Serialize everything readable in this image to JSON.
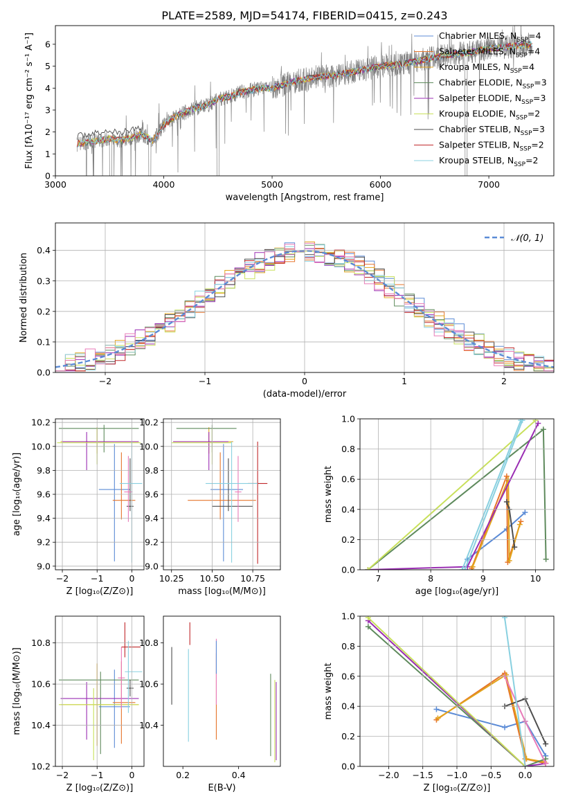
{
  "figure_title": "PLATE=2589, MJD=54174, FIBERID=0415, z=0.243",
  "colors": {
    "chabrier_miles": "#5b8bd6",
    "salpeter_miles": "#e6742a",
    "kroupa_miles": "#e2a41c",
    "chabrier_elodie": "#5e8a5c",
    "salpeter_elodie": "#9a2db3",
    "kroupa_elodie": "#c8e05a",
    "chabrier_stelib": "#4d4d4d",
    "salpeter_stelib": "#c0282a",
    "kroupa_stelib": "#88d0e0",
    "normal": "#5b8bd6",
    "pink": "#e87ab8",
    "observed": "#808080"
  },
  "chart_data": [
    {
      "id": "spectrum",
      "type": "line",
      "xlabel": "wavelength [Angstrom, rest frame]",
      "ylabel": "Flux [fλ10⁻¹⁷ erg cm⁻² s⁻¹ A⁻¹]",
      "xlim": [
        3000,
        7600
      ],
      "ylim": [
        0,
        6.85
      ],
      "xticks": [
        3000,
        4000,
        5000,
        6000,
        7000
      ],
      "yticks": [
        0,
        1,
        2,
        3,
        4,
        5,
        6
      ],
      "legend_position": "top-right",
      "legend": [
        {
          "label": "Chabrier MILES, N",
          "sub": "SSP",
          "suffix": "=4",
          "color": "chabrier_miles"
        },
        {
          "label": "Salpeter MILES, N",
          "sub": "SSP",
          "suffix": "=4",
          "color": "salpeter_miles"
        },
        {
          "label": "Kroupa MILES, N",
          "sub": "SSP",
          "suffix": "=4",
          "color": "kroupa_miles"
        },
        {
          "label": "Chabrier ELODIE, N",
          "sub": "SSP",
          "suffix": "=3",
          "color": "chabrier_elodie"
        },
        {
          "label": "Salpeter ELODIE, N",
          "sub": "SSP",
          "suffix": "=3",
          "color": "salpeter_elodie"
        },
        {
          "label": "Kroupa ELODIE, N",
          "sub": "SSP",
          "suffix": "=2",
          "color": "kroupa_elodie"
        },
        {
          "label": "Chabrier STELIB, N",
          "sub": "SSP",
          "suffix": "=3",
          "color": "chabrier_stelib"
        },
        {
          "label": "Salpeter STELIB, N",
          "sub": "SSP",
          "suffix": "=2",
          "color": "salpeter_stelib"
        },
        {
          "label": "Kroupa STELIB, N",
          "sub": "SSP",
          "suffix": "=2",
          "color": "kroupa_stelib"
        }
      ],
      "continuum": {
        "x": [
          3200,
          3300,
          3400,
          3500,
          3600,
          3700,
          3800,
          3900,
          4000,
          4100,
          4200,
          4300,
          4400,
          4500,
          4600,
          4700,
          4800,
          4900,
          5000,
          5200,
          5400,
          5600,
          5800,
          6000,
          6200,
          6400,
          6600,
          6800,
          7000,
          7200,
          7400
        ],
        "y": [
          1.45,
          1.55,
          1.6,
          1.7,
          1.6,
          1.75,
          1.9,
          1.6,
          2.3,
          2.7,
          2.9,
          3.1,
          3.2,
          3.5,
          3.6,
          3.8,
          3.9,
          4.0,
          4.0,
          4.3,
          4.5,
          4.6,
          4.8,
          5.0,
          5.1,
          5.3,
          5.5,
          5.6,
          5.8,
          5.9,
          6.0
        ]
      }
    },
    {
      "id": "residual-histogram",
      "type": "histogram",
      "xlabel": "(data-model)/error",
      "ylabel": "Normed distribution",
      "xlim": [
        -2.5,
        2.5
      ],
      "ylim": [
        0,
        0.49
      ],
      "xticks": [
        -2,
        -1,
        0,
        1,
        2
      ],
      "yticks": [
        0.0,
        0.1,
        0.2,
        0.3,
        0.4
      ],
      "grid": true,
      "legend_position": "top-right",
      "legend_label": "𝒩(0, 1)",
      "normal_curve": {
        "mean": 0,
        "sigma": 1
      },
      "bin_width": 0.1
    },
    {
      "id": "age-vs-Z",
      "type": "errorbar",
      "xlabel": "Z [log₁₀(Z/Z⊙)]",
      "ylabel": "age  [log₁₀(age/yr)]",
      "xlim": [
        -2.2,
        0.35
      ],
      "ylim": [
        8.97,
        10.23
      ],
      "xticks": [
        -2,
        -1,
        0
      ],
      "yticks": [
        9.0,
        9.2,
        9.4,
        9.6,
        9.8,
        10.0,
        10.2
      ],
      "grid": true,
      "points": [
        {
          "color": "chabrier_miles",
          "x": -0.5,
          "xerr": [
            0.45,
            0.45
          ],
          "y": 9.64,
          "yerr": [
            0.6,
            0.38
          ]
        },
        {
          "color": "salpeter_miles",
          "x": -0.3,
          "xerr": [
            0.25,
            0.4
          ],
          "y": 9.55,
          "yerr": [
            0.16,
            0.4
          ]
        },
        {
          "color": "kroupa_miles",
          "x": -1.0,
          "xerr": [
            1.05,
            1.2
          ],
          "y": 10.04,
          "yerr": [
            0.1,
            0.12
          ]
        },
        {
          "color": "chabrier_elodie",
          "x": -0.8,
          "xerr": [
            1.3,
            1.0
          ],
          "y": 10.15,
          "yerr": [
            0.2,
            0.03
          ]
        },
        {
          "color": "salpeter_elodie",
          "x": -1.3,
          "xerr": [
            0.7,
            1.5
          ],
          "y": 10.04,
          "yerr": [
            0.24,
            0.08
          ]
        },
        {
          "color": "kroupa_elodie",
          "x": -1.0,
          "xerr": [
            1.15,
            1.25
          ],
          "y": 10.03,
          "yerr": [
            0.18,
            0.12
          ]
        },
        {
          "color": "chabrier_stelib",
          "x": -0.05,
          "xerr": [
            0.1,
            0.1
          ],
          "y": 9.5,
          "yerr": [
            0.04,
            0.4
          ]
        },
        {
          "color": "pink",
          "x": -0.1,
          "xerr": [
            0.12,
            0.12
          ],
          "y": 9.62,
          "yerr": [
            0.25,
            0.3
          ]
        },
        {
          "color": "kroupa_stelib",
          "x": 0.0,
          "xerr": [
            0.35,
            0.3
          ],
          "y": 9.69,
          "yerr": [
            0.66,
            0.35
          ]
        }
      ]
    },
    {
      "id": "age-vs-mass",
      "type": "errorbar",
      "xlabel": "mass [log₁₀(M/M⊙)]",
      "ylabel": "",
      "xlim": [
        10.2,
        10.92
      ],
      "ylim": [
        8.97,
        10.23
      ],
      "xticks": [
        10.25,
        10.5,
        10.75
      ],
      "tick_labels": [
        "10.25",
        "10.50",
        "10.75"
      ],
      "yticks": [
        9.0,
        9.2,
        9.4,
        9.6,
        9.8,
        10.0,
        10.2
      ],
      "grid": true,
      "points": [
        {
          "color": "chabrier_miles",
          "x": 10.57,
          "xerr": [
            0.08,
            0.12
          ],
          "y": 9.64,
          "yerr": [
            0.6,
            0.38
          ]
        },
        {
          "color": "salpeter_miles",
          "x": 10.55,
          "xerr": [
            0.2,
            0.22
          ],
          "y": 9.55,
          "yerr": [
            0.16,
            0.4
          ]
        },
        {
          "color": "kroupa_miles",
          "x": 10.48,
          "xerr": [
            0.22,
            0.15
          ],
          "y": 10.04,
          "yerr": [
            0.1,
            0.12
          ]
        },
        {
          "color": "chabrier_elodie",
          "x": 10.5,
          "xerr": [
            0.22,
            0.15
          ],
          "y": 10.15,
          "yerr": [
            0.2,
            0.03
          ]
        },
        {
          "color": "salpeter_elodie",
          "x": 10.48,
          "xerr": [
            0.22,
            0.12
          ],
          "y": 10.04,
          "yerr": [
            0.24,
            0.08
          ]
        },
        {
          "color": "kroupa_elodie",
          "x": 10.5,
          "xerr": [
            0.25,
            0.12
          ],
          "y": 10.03,
          "yerr": [
            0.18,
            0.12
          ]
        },
        {
          "color": "chabrier_stelib",
          "x": 10.6,
          "xerr": [
            0.1,
            0.15
          ],
          "y": 9.5,
          "yerr": [
            0.04,
            0.4
          ]
        },
        {
          "color": "salpeter_stelib",
          "x": 10.78,
          "xerr": [
            0.06,
            0.06
          ],
          "y": 9.69,
          "yerr": [
            0.67,
            0.35
          ]
        },
        {
          "color": "pink",
          "x": 10.66,
          "xerr": [
            0.02,
            0.02
          ],
          "y": 9.62,
          "yerr": [
            0.25,
            0.3
          ]
        },
        {
          "color": "kroupa_stelib",
          "x": 10.62,
          "xerr": [
            0.16,
            0.16
          ],
          "y": 9.69,
          "yerr": [
            0.66,
            0.35
          ]
        }
      ]
    },
    {
      "id": "weight-vs-age",
      "type": "line",
      "xlabel": "age  [log₁₀(age/yr)]",
      "ylabel": "mass weight",
      "xlim": [
        6.65,
        10.35
      ],
      "ylim": [
        0,
        1
      ],
      "xticks": [
        7,
        8,
        9,
        10
      ],
      "yticks": [
        0.0,
        0.2,
        0.4,
        0.6,
        0.8,
        1.0
      ],
      "grid": true,
      "series": [
        {
          "color": "chabrier_miles",
          "x": [
            8.7,
            9.45,
            9.8
          ],
          "y": [
            0.07,
            0.27,
            0.38
          ]
        },
        {
          "color": "salpeter_miles",
          "x": [
            8.78,
            9.45,
            9.47,
            9.72
          ],
          "y": [
            0.01,
            0.62,
            0.05,
            0.32
          ]
        },
        {
          "color": "kroupa_miles",
          "x": [
            8.8,
            9.48,
            9.5,
            9.7
          ],
          "y": [
            0.02,
            0.6,
            0.06,
            0.3
          ]
        },
        {
          "color": "chabrier_elodie",
          "x": [
            6.8,
            10.15,
            10.2
          ],
          "y": [
            0.0,
            0.93,
            0.07
          ]
        },
        {
          "color": "salpeter_elodie",
          "x": [
            6.8,
            8.7,
            10.05
          ],
          "y": [
            0.0,
            0.02,
            0.97
          ]
        },
        {
          "color": "kroupa_elodie",
          "x": [
            6.8,
            10.0
          ],
          "y": [
            0.0,
            0.99
          ]
        },
        {
          "color": "chabrier_stelib",
          "x": [
            9.45,
            9.5,
            9.6
          ],
          "y": [
            0.45,
            0.4,
            0.15
          ]
        },
        {
          "color": "kroupa_stelib",
          "x": [
            8.6,
            9.72
          ],
          "y": [
            0.0,
            0.99
          ]
        },
        {
          "color": "kroupa_stelib",
          "x": [
            8.65,
            9.75
          ],
          "y": [
            0.0,
            0.99
          ]
        }
      ]
    },
    {
      "id": "mass-vs-Z",
      "type": "errorbar",
      "xlabel": "Z [log₁₀(Z/Z⊙)]",
      "ylabel": "mass [log₁₀(M/M⊙)]",
      "xlim": [
        -2.2,
        0.35
      ],
      "ylim": [
        10.2,
        10.93
      ],
      "xticks": [
        -2,
        -1,
        0
      ],
      "yticks": [
        10.2,
        10.4,
        10.6,
        10.8
      ],
      "grid": true,
      "points": [
        {
          "color": "chabrier_miles",
          "x": -0.5,
          "xerr": [
            0.45,
            0.45
          ],
          "y": 10.49,
          "yerr": [
            0.2,
            0.18
          ]
        },
        {
          "color": "salpeter_miles",
          "x": -0.3,
          "xerr": [
            0.25,
            0.4
          ],
          "y": 10.51,
          "yerr": [
            0.2,
            0.2
          ]
        },
        {
          "color": "kroupa_miles",
          "x": -1.0,
          "xerr": [
            1.05,
            1.2
          ],
          "y": 10.5,
          "yerr": [
            0.2,
            0.2
          ]
        },
        {
          "color": "chabrier_elodie",
          "x": -0.9,
          "xerr": [
            1.2,
            1.1
          ],
          "y": 10.62,
          "yerr": [
            0.36,
            0.04
          ]
        },
        {
          "color": "salpeter_elodie",
          "x": -1.3,
          "xerr": [
            0.75,
            1.5
          ],
          "y": 10.53,
          "yerr": [
            0.2,
            0.08
          ]
        },
        {
          "color": "kroupa_elodie",
          "x": -1.1,
          "xerr": [
            1.0,
            1.3
          ],
          "y": 10.5,
          "yerr": [
            0.27,
            0.08
          ]
        },
        {
          "color": "chabrier_stelib",
          "x": -0.05,
          "xerr": [
            0.1,
            0.1
          ],
          "y": 10.58,
          "yerr": [
            0.04,
            0.04
          ]
        },
        {
          "color": "salpeter_stelib",
          "x": -0.2,
          "xerr": [
            0.1,
            0.45
          ],
          "y": 10.78,
          "yerr": [
            0.05,
            0.12
          ]
        },
        {
          "color": "pink",
          "x": -0.3,
          "xerr": [
            0.1,
            0.1
          ],
          "y": 10.63,
          "yerr": [
            0.15,
            0.15
          ]
        },
        {
          "color": "kroupa_stelib",
          "x": -0.1,
          "xerr": [
            0.1,
            0.4
          ],
          "y": 10.66,
          "yerr": [
            0.2,
            0.15
          ]
        }
      ]
    },
    {
      "id": "mass-vs-EBV",
      "type": "errorbar",
      "xlabel": "E(B-V)",
      "ylabel": "",
      "xlim": [
        0.13,
        0.55
      ],
      "ylim": [
        10.2,
        10.93
      ],
      "xticks": [
        0.2,
        0.4
      ],
      "yticks": [
        10.4,
        10.6,
        10.8
      ],
      "tick_labels_y": [
        "10.4",
        "10.6",
        "10.8"
      ],
      "grid": false,
      "points": [
        {
          "color": "chabrier_stelib",
          "x": 0.16,
          "y": 10.64,
          "yerr": [
            0.14,
            0.14
          ]
        },
        {
          "color": "kroupa_stelib",
          "x": 0.22,
          "y": 10.62,
          "yerr": [
            0.3,
            0.15
          ]
        },
        {
          "color": "salpeter_stelib",
          "x": 0.225,
          "y": 10.84,
          "yerr": [
            0.05,
            0.06
          ]
        },
        {
          "color": "salpeter_miles",
          "x": 0.32,
          "y": 10.55,
          "yerr": [
            0.22,
            0.2
          ]
        },
        {
          "color": "pink",
          "x": 0.32,
          "y": 10.62,
          "yerr": [
            0.12,
            0.2
          ]
        },
        {
          "color": "chabrier_miles",
          "x": 0.32,
          "y": 10.71,
          "yerr": [
            0.06,
            0.1
          ]
        },
        {
          "color": "chabrier_elodie",
          "x": 0.515,
          "y": 10.45,
          "yerr": [
            0.2,
            0.2
          ]
        },
        {
          "color": "kroupa_elodie",
          "x": 0.53,
          "y": 10.42,
          "yerr": [
            0.2,
            0.2
          ]
        },
        {
          "color": "salpeter_elodie",
          "x": 0.535,
          "y": 10.43,
          "yerr": [
            0.2,
            0.18
          ]
        }
      ]
    },
    {
      "id": "weight-vs-Z",
      "type": "line",
      "xlabel": "Z [log₁₀(Z/Z⊙)]",
      "ylabel": "mass weight",
      "xlim": [
        -2.42,
        0.42
      ],
      "ylim": [
        0,
        1
      ],
      "xticks": [
        -2.0,
        -1.5,
        -1.0,
        -0.5,
        0.0
      ],
      "tick_labels": [
        "−2.0",
        "−1.5",
        "−1.0",
        "−0.5",
        "0.0"
      ],
      "yticks": [
        0.0,
        0.2,
        0.4,
        0.6,
        0.8,
        1.0
      ],
      "grid": true,
      "series": [
        {
          "color": "chabrier_miles",
          "x": [
            -1.3,
            -0.3,
            0.0,
            0.3
          ],
          "y": [
            0.38,
            0.26,
            0.3,
            0.07
          ]
        },
        {
          "color": "salpeter_miles",
          "x": [
            -1.3,
            -0.3,
            0.0,
            0.3
          ],
          "y": [
            0.31,
            0.62,
            0.05,
            0.02
          ]
        },
        {
          "color": "kroupa_miles",
          "x": [
            -1.28,
            -0.28,
            0.02,
            0.28
          ],
          "y": [
            0.32,
            0.61,
            0.05,
            0.03
          ]
        },
        {
          "color": "chabrier_elodie",
          "x": [
            -2.3,
            0.0,
            0.3
          ],
          "y": [
            0.93,
            0.0,
            0.05
          ]
        },
        {
          "color": "salpeter_elodie",
          "x": [
            -2.3,
            0.0,
            0.3
          ],
          "y": [
            0.97,
            0.0,
            0.02
          ]
        },
        {
          "color": "kroupa_elodie",
          "x": [
            -2.3,
            0.0
          ],
          "y": [
            0.99,
            0.0
          ]
        },
        {
          "color": "chabrier_stelib",
          "x": [
            -0.3,
            0.0,
            0.3
          ],
          "y": [
            0.4,
            0.45,
            0.15
          ]
        },
        {
          "color": "pink",
          "x": [
            -0.3,
            0.0,
            0.3
          ],
          "y": [
            0.6,
            0.3,
            0.02
          ]
        },
        {
          "color": "kroupa_stelib",
          "x": [
            -0.3,
            0.0
          ],
          "y": [
            0.99,
            0.0
          ]
        }
      ]
    }
  ]
}
